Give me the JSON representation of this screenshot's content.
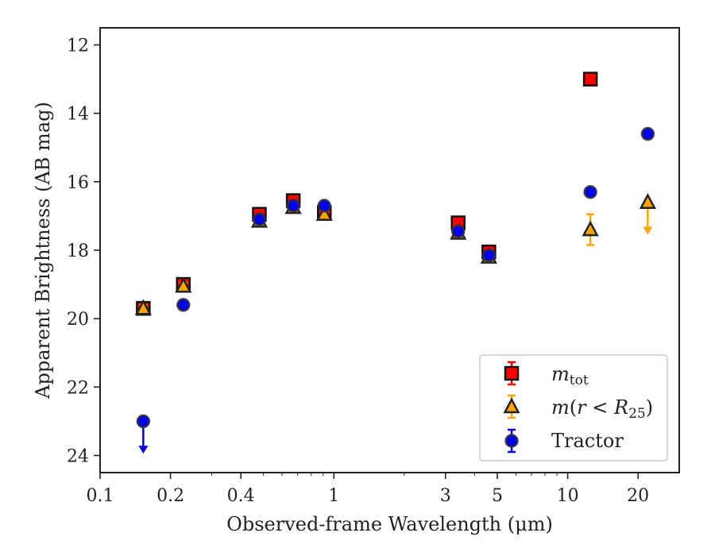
{
  "chart_data": {
    "type": "scatter",
    "xlabel": "Observed-frame Wavelength (μm)",
    "ylabel": "Apparent Brightness (AB mag)",
    "xscale": "log",
    "xlim": [
      0.1,
      30
    ],
    "ylim": [
      24.5,
      11.5
    ],
    "y_inverted": true,
    "x_ticks": [
      0.1,
      0.2,
      0.4,
      1,
      3,
      5,
      10,
      20
    ],
    "x_tick_labels": [
      "0.1",
      "0.2",
      "0.4",
      "1",
      "3",
      "5",
      "10",
      "20"
    ],
    "y_ticks": [
      12,
      14,
      16,
      18,
      20,
      22,
      24
    ],
    "y_tick_labels": [
      "12",
      "14",
      "16",
      "18",
      "20",
      "22",
      "24"
    ],
    "legend_position": "lower-right",
    "series": [
      {
        "name": "m_tot",
        "legend_label": "mtot",
        "marker": "square",
        "color": "#ff0000",
        "edgecolor": "#111111",
        "points": [
          {
            "x": 0.153,
            "y": 19.7,
            "err": 0.1
          },
          {
            "x": 0.227,
            "y": 19.0,
            "err": 0.1
          },
          {
            "x": 0.48,
            "y": 16.95,
            "err": 0.1
          },
          {
            "x": 0.67,
            "y": 16.55,
            "err": 0.1
          },
          {
            "x": 0.91,
            "y": 16.9,
            "err": 0.1
          },
          {
            "x": 3.4,
            "y": 17.2,
            "err": 0.1
          },
          {
            "x": 4.6,
            "y": 18.05,
            "err": 0.1
          },
          {
            "x": 12.5,
            "y": 13.0,
            "err": 0.05
          }
        ]
      },
      {
        "name": "m(r<R25)",
        "legend_label": "m(r < R25)",
        "marker": "triangle",
        "color": "#ffa500",
        "edgecolor": "#222222",
        "points": [
          {
            "x": 0.153,
            "y": 19.7,
            "err": 0.1
          },
          {
            "x": 0.227,
            "y": 19.05,
            "err": 0.1
          },
          {
            "x": 0.48,
            "y": 17.15,
            "err": 0.05
          },
          {
            "x": 0.67,
            "y": 16.75,
            "err": 0.05
          },
          {
            "x": 0.91,
            "y": 16.95,
            "err": 0.05
          },
          {
            "x": 3.4,
            "y": 17.5,
            "err": 0.05
          },
          {
            "x": 4.6,
            "y": 18.2,
            "err": 0.05
          },
          {
            "x": 12.5,
            "y": 17.4,
            "err": 0.45
          },
          {
            "x": 22.0,
            "y": 16.6,
            "upper_limit": true,
            "limit_to": 17.5
          }
        ]
      },
      {
        "name": "Tractor",
        "legend_label": "Tractor",
        "marker": "circle",
        "color": "#0000ee",
        "edgecolor": "#333333",
        "points": [
          {
            "x": 0.153,
            "y": 23.0,
            "upper_limit": true,
            "limit_to": 23.9
          },
          {
            "x": 0.227,
            "y": 19.6,
            "err": 0.05
          },
          {
            "x": 0.48,
            "y": 17.1,
            "err": 0.05
          },
          {
            "x": 0.67,
            "y": 16.7,
            "err": 0.05
          },
          {
            "x": 0.91,
            "y": 16.7,
            "err": 0.05
          },
          {
            "x": 3.4,
            "y": 17.45,
            "err": 0.05
          },
          {
            "x": 4.6,
            "y": 18.15,
            "err": 0.05
          },
          {
            "x": 12.5,
            "y": 16.3,
            "err": 0.05
          },
          {
            "x": 22.0,
            "y": 14.6,
            "err": 0.05
          }
        ]
      }
    ]
  }
}
